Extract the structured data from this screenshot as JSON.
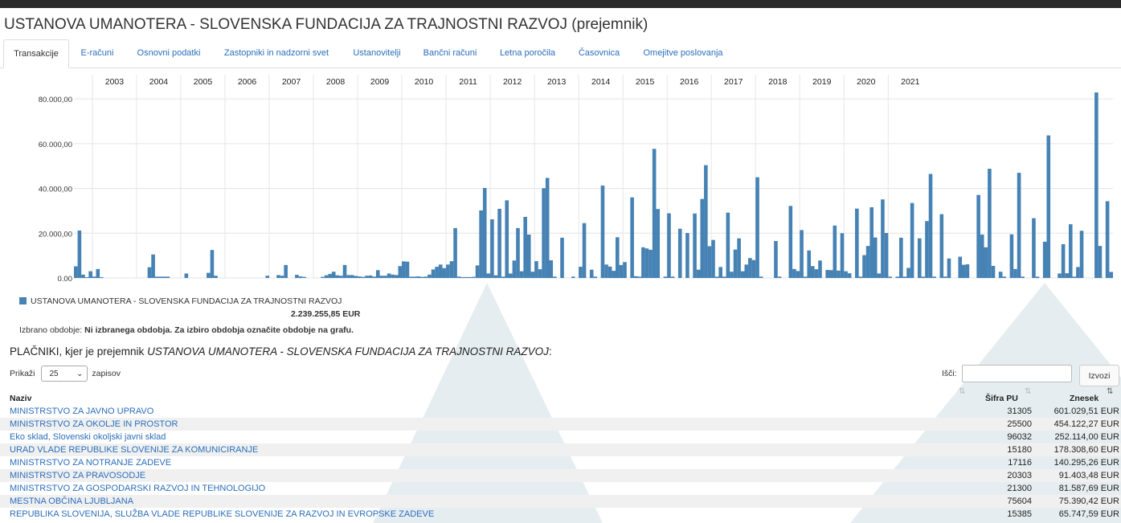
{
  "header": {
    "title": "USTANOVA UMANOTERA - SLOVENSKA FUNDACIJA ZA TRAJNOSTNI RAZVOJ (prejemnik)"
  },
  "tabs": [
    {
      "label": "Transakcije",
      "active": true
    },
    {
      "label": "E-računi"
    },
    {
      "label": "Osnovni podatki"
    },
    {
      "label": "Zastopniki in nadzorni svet"
    },
    {
      "label": "Ustanovitelji"
    },
    {
      "label": "Bančni računi"
    },
    {
      "label": "Letna poročila"
    },
    {
      "label": "Časovnica"
    },
    {
      "label": "Omejitve poslovanja"
    }
  ],
  "chart_data": {
    "type": "bar",
    "series_color": "#4682b4",
    "year_labels": [
      "2003",
      "2004",
      "2005",
      "2006",
      "2007",
      "2008",
      "2009",
      "2010",
      "2011",
      "2012",
      "2013",
      "2014",
      "2015",
      "2016",
      "2017",
      "2018",
      "2019",
      "2020",
      "2021"
    ],
    "y_ticks": [
      "0,00",
      "20.000,00",
      "40.000,00",
      "60.000,00",
      "80.000,00"
    ],
    "ylim": [
      0,
      85000
    ],
    "grid": true,
    "x_start": "2002-08",
    "values": [
      5200,
      21200,
      1500,
      300,
      3000,
      600,
      4000,
      300,
      0,
      0,
      0,
      0,
      0,
      0,
      0,
      0,
      0,
      0,
      0,
      0,
      4800,
      10500,
      600,
      600,
      600,
      600,
      0,
      0,
      0,
      0,
      2000,
      0,
      0,
      0,
      0,
      0,
      2300,
      12500,
      1000,
      0,
      0,
      0,
      0,
      0,
      0,
      0,
      0,
      0,
      0,
      0,
      0,
      0,
      1000,
      0,
      0,
      1300,
      1000,
      5800,
      0,
      0,
      1400,
      700,
      500,
      0,
      0,
      0,
      0,
      500,
      1200,
      1800,
      2800,
      1200,
      1000,
      5800,
      1300,
      1300,
      900,
      700,
      500,
      1000,
      1100,
      600,
      3500,
      1000,
      1000,
      2000,
      1500,
      1300,
      5300,
      7400,
      7300,
      600,
      600,
      700,
      500,
      600,
      1500,
      3800,
      5000,
      6000,
      4400,
      6000,
      7500,
      22300,
      600,
      400,
      400,
      400,
      500,
      5600,
      30200,
      40200,
      2000,
      26200,
      1200,
      30900,
      600,
      34700,
      2000,
      7800,
      22300,
      3000,
      27300,
      19400,
      2800,
      7500,
      3900,
      40100,
      44700,
      7900,
      600,
      0,
      18000,
      0,
      0,
      600,
      0,
      5000,
      24500,
      0,
      3700,
      600,
      0,
      41300,
      6000,
      5100,
      3200,
      18200,
      5800,
      7100,
      0,
      36000,
      800,
      600,
      13700,
      13200,
      12600,
      57700,
      30800,
      0,
      600,
      28900,
      600,
      0,
      22000,
      0,
      20100,
      0,
      28800,
      3700,
      35300,
      50400,
      14200,
      17000,
      600,
      4900,
      600,
      29200,
      2800,
      12700,
      17700,
      3000,
      6000,
      8900,
      8000,
      45000,
      600,
      0,
      0,
      0,
      16500,
      600,
      0,
      0,
      32200,
      4000,
      3100,
      21400,
      600,
      12300,
      5300,
      3900,
      7800,
      0,
      3600,
      3500,
      23400,
      3300,
      20000,
      3000,
      2100,
      0,
      31000,
      600,
      10200,
      14300,
      31600,
      18100,
      2000,
      35100,
      20100,
      600,
      0,
      600,
      18000,
      600,
      4500,
      33500,
      0,
      17700,
      600,
      25400,
      46500,
      600,
      0,
      28500,
      600,
      8700,
      0,
      0,
      9500,
      5900,
      6100,
      0,
      0,
      37100,
      19400,
      13700,
      48800,
      5400,
      0,
      2800,
      600,
      0,
      19500,
      4000,
      47000,
      600,
      0,
      0,
      26700,
      600,
      0,
      16200,
      63700,
      0,
      0,
      2000,
      15100,
      2100,
      24000,
      600,
      4900,
      21100,
      0,
      0,
      0,
      82900,
      14300,
      0,
      34300,
      2700
    ]
  },
  "legend": {
    "series_name": "USTANOVA UMANOTERA - SLOVENSKA FUNDACIJA ZA TRAJNOSTNI RAZVOJ",
    "total": "2.239.255,85 EUR"
  },
  "period": {
    "label": "Izbrano obdobje:",
    "value": "Ni izbranega obdobja. Za izbiro obdobja označite obdobje na grafu."
  },
  "payers": {
    "heading": "PLAČNIKI, kjer je prejemnik",
    "heading_name": "USTANOVA UMANOTERA - SLOVENSKA FUNDACIJA ZA TRAJNOSTNI RAZVOJ",
    "heading_end": ":",
    "show_label": "Prikaži",
    "page_size": "25",
    "records_label": "zapisov",
    "search_label": "Išči:",
    "search_value": "",
    "export_label": "Izvozi",
    "columns": {
      "naziv": "Naziv",
      "sifra": "Šifra PU",
      "znesek": "Znesek"
    },
    "rows": [
      {
        "naziv": "MINISTRSTVO ZA JAVNO UPRAVO",
        "sifra": "31305",
        "znesek": "601.029,51 EUR"
      },
      {
        "naziv": "MINISTRSTVO ZA OKOLJE IN PROSTOR",
        "sifra": "25500",
        "znesek": "454.122,27 EUR"
      },
      {
        "naziv": "Eko sklad, Slovenski okoljski javni sklad",
        "sifra": "96032",
        "znesek": "252.114,00 EUR"
      },
      {
        "naziv": "URAD VLADE REPUBLIKE SLOVENIJE ZA KOMUNICIRANJE",
        "sifra": "15180",
        "znesek": "178.308,60 EUR"
      },
      {
        "naziv": "MINISTRSTVO ZA NOTRANJE ZADEVE",
        "sifra": "17116",
        "znesek": "140.295,26 EUR"
      },
      {
        "naziv": "MINISTRSTVO ZA PRAVOSODJE",
        "sifra": "20303",
        "znesek": "91.403,48 EUR"
      },
      {
        "naziv": "MINISTRSTVO ZA GOSPODARSKI RAZVOJ IN TEHNOLOGIJO",
        "sifra": "21300",
        "znesek": "81.587,69 EUR"
      },
      {
        "naziv": "MESTNA OBČINA LJUBLJANA",
        "sifra": "75604",
        "znesek": "75.390,42 EUR"
      },
      {
        "naziv": "REPUBLIKA SLOVENIJA, SLUŽBA VLADE REPUBLIKE SLOVENIJE ZA RAZVOJ IN EVROPSKE ZADEVE",
        "sifra": "15385",
        "znesek": "65.747,59 EUR"
      }
    ]
  }
}
